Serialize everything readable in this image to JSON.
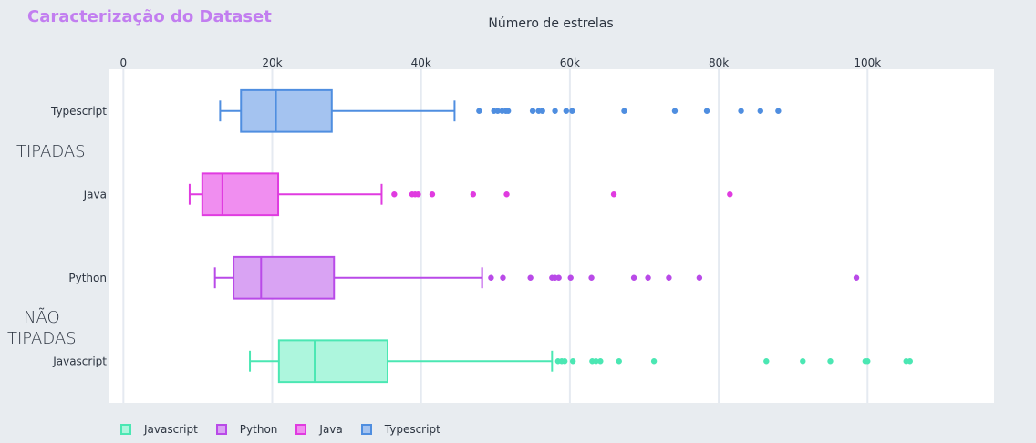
{
  "heading": "Caracterização do Dataset",
  "group_labels": {
    "typed": "TIPADAS",
    "untyped_line1": "NÃO",
    "untyped_line2": "TIPADAS"
  },
  "chart_data": {
    "type": "box",
    "title": "Número de estrelas",
    "orientation": "horizontal",
    "xlim": [
      -2000,
      117000
    ],
    "x_ticks": [
      0,
      20000,
      40000,
      60000,
      80000,
      100000
    ],
    "x_tick_labels": [
      "0",
      "20k",
      "40k",
      "60k",
      "80k",
      "100k"
    ],
    "x_axis_side": "top",
    "grid": true,
    "legend_placement": "bottom-left",
    "categories": [
      "Typescript",
      "Java",
      "Python",
      "Javascript"
    ],
    "series": [
      {
        "name": "Typescript",
        "color": "#4f8ee0",
        "fill": "#a4c3f0",
        "min": 13000,
        "q1": 15800,
        "median": 20500,
        "q3": 28000,
        "max": 44500,
        "outliers": [
          47800,
          49800,
          50300,
          50900,
          51400,
          51700,
          55000,
          55800,
          56300,
          58000,
          59500,
          60300,
          67300,
          74100,
          78400,
          83000,
          85600,
          88000
        ]
      },
      {
        "name": "Java",
        "color": "#e03be0",
        "fill": "#f08ef0",
        "min": 8900,
        "q1": 10600,
        "median": 13300,
        "q3": 20800,
        "max": 34700,
        "outliers": [
          36400,
          38800,
          39200,
          39600,
          41500,
          47000,
          51500,
          65900,
          81500
        ]
      },
      {
        "name": "Python",
        "color": "#b94ae8",
        "fill": "#d9a3f3",
        "min": 12300,
        "q1": 14800,
        "median": 18500,
        "q3": 28300,
        "max": 48200,
        "outliers": [
          49400,
          51000,
          54700,
          57600,
          58000,
          58500,
          60100,
          62900,
          68600,
          70500,
          73300,
          77400,
          98500
        ]
      },
      {
        "name": "Javascript",
        "color": "#4be7b3",
        "fill": "#adf6dd",
        "min": 17000,
        "q1": 20900,
        "median": 25700,
        "q3": 35500,
        "max": 57600,
        "outliers": [
          58400,
          58900,
          59300,
          60400,
          63000,
          63500,
          64100,
          66600,
          71300,
          86400,
          91300,
          95000,
          99700,
          100000,
          105200,
          105700
        ]
      }
    ],
    "legend": [
      "Javascript",
      "Python",
      "Java",
      "Typescript"
    ]
  }
}
